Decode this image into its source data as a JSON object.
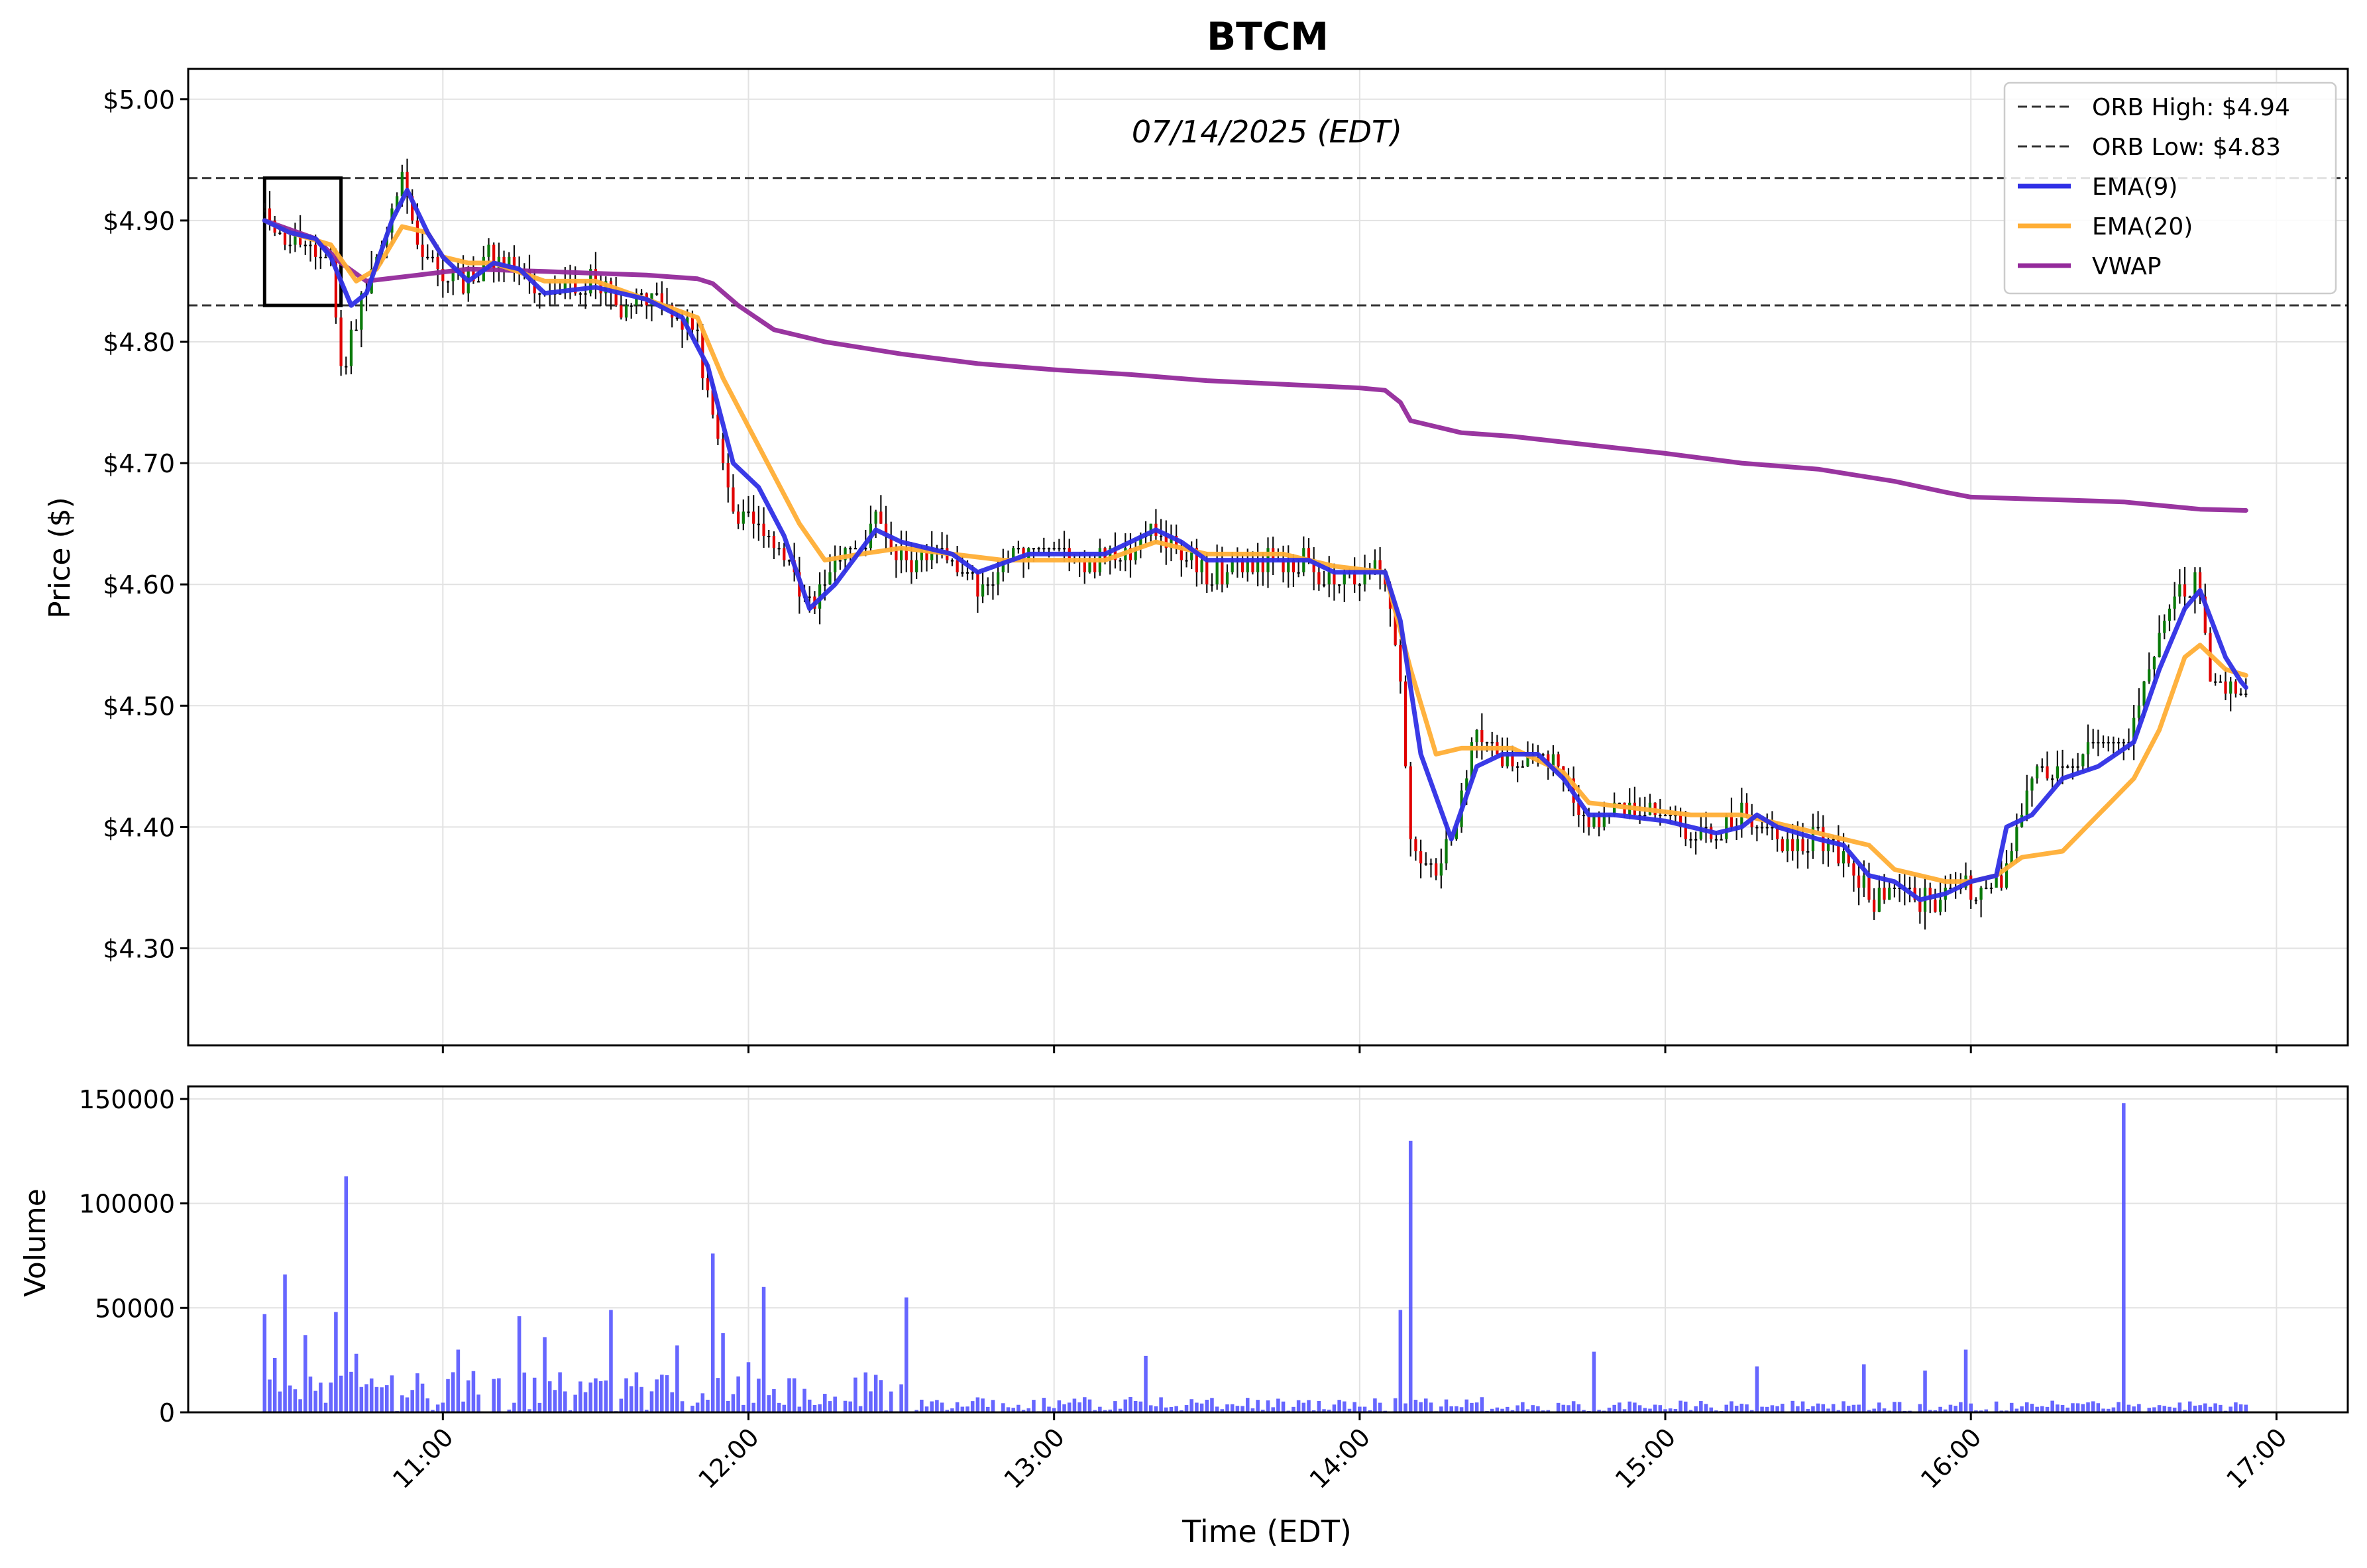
{
  "chart_data": {
    "type": "candlestick",
    "title": "BTCM",
    "subtitle": "07/14/2025 (EDT)",
    "x_label": "Time (EDT)",
    "price_panel": {
      "y_label": "Price ($)",
      "y_range": [
        4.22,
        5.025
      ],
      "y_ticks": [
        4.3,
        4.4,
        4.5,
        4.6,
        4.7,
        4.8,
        4.9,
        5.0
      ],
      "y_tick_labels": [
        "$4.30",
        "$4.40",
        "$4.50",
        "$4.60",
        "$4.70",
        "$4.80",
        "$4.90",
        "$5.00"
      ],
      "orb_high": 4.935,
      "orb_low": 4.83,
      "orb_window": {
        "start": "10:25",
        "end": "10:40"
      }
    },
    "volume_panel": {
      "y_label": "Volume",
      "y_range": [
        0,
        156000
      ],
      "y_ticks": [
        0,
        50000,
        100000,
        150000
      ],
      "y_tick_labels": [
        "0",
        "50000",
        "100000",
        "150000"
      ]
    },
    "x_axis": {
      "range": [
        "10:10",
        "17:14"
      ],
      "ticks": [
        "11:00",
        "12:00",
        "13:00",
        "14:00",
        "15:00",
        "16:00",
        "17:00"
      ]
    },
    "legend": {
      "position": "top-right",
      "entries": [
        {
          "label": "ORB High: $4.94",
          "style": "dashed",
          "color": "#333333"
        },
        {
          "label": "ORB Low: $4.83",
          "style": "dashed",
          "color": "#333333"
        },
        {
          "label": "EMA(9)",
          "style": "solid",
          "color": "#2f2fe6"
        },
        {
          "label": "EMA(20)",
          "style": "solid",
          "color": "#ffae35"
        },
        {
          "label": "VWAP",
          "style": "solid",
          "color": "#942a9b"
        }
      ]
    },
    "colors": {
      "up": "#0a7a0a",
      "down": "#e00000",
      "doji": "#000000",
      "volume": "#5555ff"
    },
    "price_anchors": [
      [
        "10:25",
        4.91
      ],
      [
        "10:30",
        4.88
      ],
      [
        "10:35",
        4.88
      ],
      [
        "10:38",
        4.86
      ],
      [
        "10:40",
        4.78
      ],
      [
        "10:43",
        4.82
      ],
      [
        "10:47",
        4.87
      ],
      [
        "10:52",
        4.94
      ],
      [
        "10:55",
        4.88
      ],
      [
        "11:00",
        4.86
      ],
      [
        "11:04",
        4.85
      ],
      [
        "11:10",
        4.87
      ],
      [
        "11:15",
        4.86
      ],
      [
        "11:20",
        4.84
      ],
      [
        "11:30",
        4.85
      ],
      [
        "11:35",
        4.83
      ],
      [
        "11:40",
        4.84
      ],
      [
        "11:45",
        4.82
      ],
      [
        "11:50",
        4.81
      ],
      [
        "11:53",
        4.73
      ],
      [
        "11:57",
        4.66
      ],
      [
        "12:02",
        4.65
      ],
      [
        "12:07",
        4.62
      ],
      [
        "12:12",
        4.58
      ],
      [
        "12:17",
        4.62
      ],
      [
        "12:25",
        4.65
      ],
      [
        "12:30",
        4.62
      ],
      [
        "12:40",
        4.62
      ],
      [
        "12:45",
        4.6
      ],
      [
        "12:55",
        4.63
      ],
      [
        "13:10",
        4.62
      ],
      [
        "13:20",
        4.64
      ],
      [
        "13:25",
        4.63
      ],
      [
        "13:30",
        4.61
      ],
      [
        "13:40",
        4.62
      ],
      [
        "13:50",
        4.62
      ],
      [
        "13:55",
        4.6
      ],
      [
        "14:00",
        4.61
      ],
      [
        "14:05",
        4.61
      ],
      [
        "14:08",
        4.52
      ],
      [
        "14:10",
        4.38
      ],
      [
        "14:15",
        4.36
      ],
      [
        "14:19",
        4.4
      ],
      [
        "14:23",
        4.48
      ],
      [
        "14:30",
        4.45
      ],
      [
        "14:35",
        4.46
      ],
      [
        "14:40",
        4.45
      ],
      [
        "14:45",
        4.4
      ],
      [
        "14:50",
        4.42
      ],
      [
        "15:00",
        4.41
      ],
      [
        "15:05",
        4.4
      ],
      [
        "15:10",
        4.39
      ],
      [
        "15:15",
        4.41
      ],
      [
        "15:20",
        4.39
      ],
      [
        "15:25",
        4.38
      ],
      [
        "15:30",
        4.39
      ],
      [
        "15:35",
        4.38
      ],
      [
        "15:40",
        4.34
      ],
      [
        "15:45",
        4.35
      ],
      [
        "15:50",
        4.34
      ],
      [
        "15:55",
        4.34
      ],
      [
        "16:00",
        4.35
      ],
      [
        "16:05",
        4.36
      ],
      [
        "16:08",
        4.37
      ],
      [
        "16:12",
        4.44
      ],
      [
        "16:18",
        4.45
      ],
      [
        "16:24",
        4.46
      ],
      [
        "16:30",
        4.47
      ],
      [
        "16:33",
        4.5
      ],
      [
        "16:37",
        4.56
      ],
      [
        "16:41",
        4.6
      ],
      [
        "16:45",
        4.6
      ],
      [
        "16:47",
        4.51
      ],
      [
        "16:50",
        4.52
      ],
      [
        "16:54",
        4.51
      ]
    ],
    "ema9_anchors": [
      [
        "10:25",
        4.9
      ],
      [
        "10:30",
        4.89
      ],
      [
        "10:35",
        4.885
      ],
      [
        "10:38",
        4.87
      ],
      [
        "10:42",
        4.83
      ],
      [
        "10:45",
        4.84
      ],
      [
        "10:50",
        4.9
      ],
      [
        "10:53",
        4.925
      ],
      [
        "10:57",
        4.89
      ],
      [
        "11:00",
        4.87
      ],
      [
        "11:05",
        4.85
      ],
      [
        "11:10",
        4.865
      ],
      [
        "11:15",
        4.86
      ],
      [
        "11:20",
        4.84
      ],
      [
        "11:30",
        4.845
      ],
      [
        "11:40",
        4.835
      ],
      [
        "11:47",
        4.82
      ],
      [
        "11:52",
        4.78
      ],
      [
        "11:57",
        4.7
      ],
      [
        "12:02",
        4.68
      ],
      [
        "12:07",
        4.64
      ],
      [
        "12:12",
        4.58
      ],
      [
        "12:17",
        4.6
      ],
      [
        "12:25",
        4.645
      ],
      [
        "12:30",
        4.635
      ],
      [
        "12:40",
        4.625
      ],
      [
        "12:45",
        4.61
      ],
      [
        "12:55",
        4.625
      ],
      [
        "13:10",
        4.625
      ],
      [
        "13:20",
        4.645
      ],
      [
        "13:25",
        4.635
      ],
      [
        "13:30",
        4.62
      ],
      [
        "13:40",
        4.62
      ],
      [
        "13:50",
        4.62
      ],
      [
        "13:55",
        4.61
      ],
      [
        "14:05",
        4.61
      ],
      [
        "14:08",
        4.57
      ],
      [
        "14:12",
        4.46
      ],
      [
        "14:18",
        4.39
      ],
      [
        "14:23",
        4.45
      ],
      [
        "14:28",
        4.46
      ],
      [
        "14:35",
        4.46
      ],
      [
        "14:40",
        4.44
      ],
      [
        "14:45",
        4.41
      ],
      [
        "14:50",
        4.41
      ],
      [
        "15:00",
        4.405
      ],
      [
        "15:05",
        4.4
      ],
      [
        "15:10",
        4.395
      ],
      [
        "15:15",
        4.4
      ],
      [
        "15:18",
        4.41
      ],
      [
        "15:22",
        4.4
      ],
      [
        "15:30",
        4.39
      ],
      [
        "15:35",
        4.385
      ],
      [
        "15:40",
        4.36
      ],
      [
        "15:45",
        4.355
      ],
      [
        "15:50",
        4.34
      ],
      [
        "15:55",
        4.345
      ],
      [
        "16:00",
        4.355
      ],
      [
        "16:05",
        4.36
      ],
      [
        "16:07",
        4.4
      ],
      [
        "16:12",
        4.41
      ],
      [
        "16:18",
        4.44
      ],
      [
        "16:25",
        4.45
      ],
      [
        "16:32",
        4.47
      ],
      [
        "16:37",
        4.53
      ],
      [
        "16:42",
        4.58
      ],
      [
        "16:45",
        4.595
      ],
      [
        "16:50",
        4.54
      ],
      [
        "16:53",
        4.52
      ],
      [
        "16:54",
        4.515
      ]
    ],
    "ema20_anchors": [
      [
        "10:25",
        4.9
      ],
      [
        "10:30",
        4.89
      ],
      [
        "10:38",
        4.88
      ],
      [
        "10:43",
        4.85
      ],
      [
        "10:47",
        4.86
      ],
      [
        "10:52",
        4.895
      ],
      [
        "10:57",
        4.89
      ],
      [
        "11:00",
        4.87
      ],
      [
        "11:05",
        4.865
      ],
      [
        "11:10",
        4.865
      ],
      [
        "11:20",
        4.85
      ],
      [
        "11:30",
        4.85
      ],
      [
        "11:40",
        4.835
      ],
      [
        "11:50",
        4.82
      ],
      [
        "11:55",
        4.77
      ],
      [
        "12:00",
        4.73
      ],
      [
        "12:05",
        4.69
      ],
      [
        "12:10",
        4.65
      ],
      [
        "12:15",
        4.62
      ],
      [
        "12:22",
        4.625
      ],
      [
        "12:30",
        4.63
      ],
      [
        "12:40",
        4.625
      ],
      [
        "12:50",
        4.62
      ],
      [
        "13:10",
        4.62
      ],
      [
        "13:20",
        4.635
      ],
      [
        "13:30",
        4.625
      ],
      [
        "13:45",
        4.625
      ],
      [
        "13:55",
        4.615
      ],
      [
        "14:05",
        4.61
      ],
      [
        "14:10",
        4.53
      ],
      [
        "14:15",
        4.46
      ],
      [
        "14:20",
        4.465
      ],
      [
        "14:30",
        4.465
      ],
      [
        "14:40",
        4.445
      ],
      [
        "14:45",
        4.42
      ],
      [
        "14:55",
        4.415
      ],
      [
        "15:05",
        4.41
      ],
      [
        "15:15",
        4.41
      ],
      [
        "15:20",
        4.405
      ],
      [
        "15:30",
        4.395
      ],
      [
        "15:40",
        4.385
      ],
      [
        "15:45",
        4.365
      ],
      [
        "15:55",
        4.355
      ],
      [
        "16:00",
        4.355
      ],
      [
        "16:05",
        4.36
      ],
      [
        "16:10",
        4.375
      ],
      [
        "16:18",
        4.38
      ],
      [
        "16:25",
        4.41
      ],
      [
        "16:32",
        4.44
      ],
      [
        "16:37",
        4.48
      ],
      [
        "16:42",
        4.54
      ],
      [
        "16:45",
        4.55
      ],
      [
        "16:50",
        4.53
      ],
      [
        "16:54",
        4.525
      ]
    ],
    "vwap_anchors": [
      [
        "10:25",
        4.9
      ],
      [
        "10:35",
        4.885
      ],
      [
        "10:40",
        4.865
      ],
      [
        "10:45",
        4.85
      ],
      [
        "10:55",
        4.855
      ],
      [
        "11:05",
        4.86
      ],
      [
        "11:20",
        4.858
      ],
      [
        "11:40",
        4.855
      ],
      [
        "11:50",
        4.852
      ],
      [
        "11:53",
        4.848
      ],
      [
        "11:58",
        4.83
      ],
      [
        "12:05",
        4.81
      ],
      [
        "12:15",
        4.8
      ],
      [
        "12:30",
        4.79
      ],
      [
        "12:45",
        4.782
      ],
      [
        "13:00",
        4.777
      ],
      [
        "13:15",
        4.773
      ],
      [
        "13:30",
        4.768
      ],
      [
        "13:45",
        4.765
      ],
      [
        "14:00",
        4.762
      ],
      [
        "14:05",
        4.76
      ],
      [
        "14:08",
        4.75
      ],
      [
        "14:10",
        4.735
      ],
      [
        "14:20",
        4.725
      ],
      [
        "14:30",
        4.722
      ],
      [
        "14:45",
        4.715
      ],
      [
        "15:00",
        4.708
      ],
      [
        "15:15",
        4.7
      ],
      [
        "15:30",
        4.695
      ],
      [
        "15:45",
        4.685
      ],
      [
        "15:55",
        4.676
      ],
      [
        "16:00",
        4.672
      ],
      [
        "16:15",
        4.67
      ],
      [
        "16:30",
        4.668
      ],
      [
        "16:45",
        4.662
      ],
      [
        "16:54",
        4.661
      ]
    ],
    "volume_spikes": [
      [
        "10:25",
        47000
      ],
      [
        "10:27",
        26000
      ],
      [
        "10:29",
        66000
      ],
      [
        "10:33",
        37000
      ],
      [
        "10:39",
        48000
      ],
      [
        "10:41",
        113000
      ],
      [
        "10:43",
        28000
      ],
      [
        "11:03",
        30000
      ],
      [
        "11:15",
        46000
      ],
      [
        "11:20",
        36000
      ],
      [
        "11:33",
        49000
      ],
      [
        "11:46",
        32000
      ],
      [
        "11:53",
        76000
      ],
      [
        "11:55",
        38000
      ],
      [
        "12:00",
        24000
      ],
      [
        "12:03",
        60000
      ],
      [
        "12:31",
        55000
      ],
      [
        "13:18",
        27000
      ],
      [
        "14:08",
        49000
      ],
      [
        "14:10",
        130000
      ],
      [
        "14:46",
        29000
      ],
      [
        "15:18",
        22000
      ],
      [
        "15:39",
        23000
      ],
      [
        "15:51",
        20000
      ],
      [
        "15:59",
        30000
      ],
      [
        "16:30",
        148000
      ]
    ]
  }
}
